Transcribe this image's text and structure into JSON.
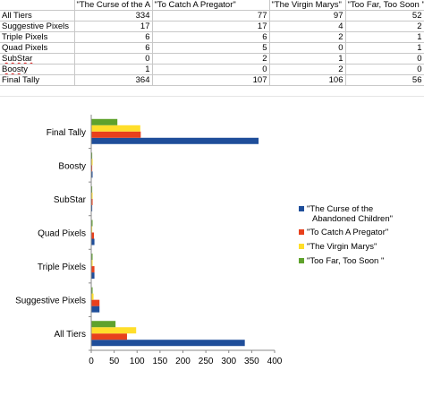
{
  "sheet": {
    "headers": [
      "",
      "\"The Curse of the A",
      "\"To Catch A Pregator\"",
      "\"The Virgin Marys\"",
      "\"Too Far, Too Soon \""
    ],
    "rows": [
      {
        "label": "All Tiers",
        "values": [
          "334",
          "77",
          "97",
          "52"
        ]
      },
      {
        "label": "Suggestive Pixels",
        "values": [
          "17",
          "17",
          "4",
          "2"
        ]
      },
      {
        "label": "Triple Pixels",
        "values": [
          "6",
          "6",
          "2",
          "1"
        ]
      },
      {
        "label": "Quad Pixels",
        "values": [
          "6",
          "5",
          "0",
          "1"
        ]
      },
      {
        "label": "SubStar",
        "values": [
          "0",
          "2",
          "1",
          "0"
        ]
      },
      {
        "label": "Boosty",
        "values": [
          "1",
          "0",
          "2",
          "0"
        ]
      },
      {
        "label": "Final Tally",
        "values": [
          "364",
          "107",
          "106",
          "56"
        ]
      }
    ]
  },
  "chart_data": {
    "type": "bar",
    "orientation": "horizontal",
    "categories": [
      "All Tiers",
      "Suggestive Pixels",
      "Triple Pixels",
      "Quad Pixels",
      "SubStar",
      "Boosty",
      "Final Tally"
    ],
    "series": [
      {
        "name": "\"The Curse of the Abandoned Children\"",
        "color": "#1f4e9a",
        "values": [
          334,
          17,
          6,
          6,
          0,
          1,
          364
        ]
      },
      {
        "name": "\"To Catch A Pregator\"",
        "color": "#e8401c",
        "values": [
          77,
          17,
          6,
          5,
          2,
          0,
          107
        ]
      },
      {
        "name": "\"The Virgin Marys\"",
        "color": "#ffde2a",
        "values": [
          97,
          4,
          2,
          0,
          1,
          2,
          106
        ]
      },
      {
        "name": "\"Too Far, Too Soon \"",
        "color": "#5fa22c",
        "values": [
          52,
          2,
          1,
          1,
          0,
          0,
          56
        ]
      }
    ],
    "xlim": [
      0,
      400
    ],
    "xticks": [
      "0",
      "50",
      "100",
      "150",
      "200",
      "250",
      "300",
      "350",
      "400"
    ],
    "legend_position": "right",
    "grid": false
  }
}
